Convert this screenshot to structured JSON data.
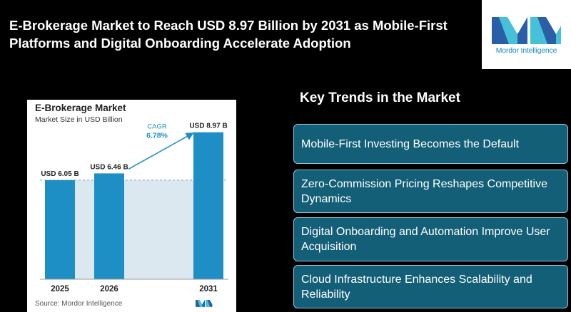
{
  "headline": "E-Brokerage Market to Reach USD 8.97 Billion by 2031 as Mobile-First Platforms and Digital Onboarding Accelerate Adoption",
  "logo": {
    "name": "Mordor Intelligence"
  },
  "colors": {
    "bar": "#1e8fc4",
    "trend_bg": "#145f78",
    "cagr_text": "#1e8fc4",
    "background": "#000000"
  },
  "chart_data": {
    "type": "bar",
    "title": "E-Brokerage Market",
    "subtitle": "Market Size in USD Billion",
    "categories": [
      "2025",
      "2026",
      "2031"
    ],
    "values": [
      6.05,
      6.46,
      8.97
    ],
    "value_labels": [
      "USD 6.05 B",
      "USD 6.46 B",
      "USD 8.97 B"
    ],
    "ylim": [
      0,
      10
    ],
    "cagr_label": "CAGR",
    "cagr_value": "6.78%",
    "source": "Source: Mordor Intelligence"
  },
  "trends": {
    "heading": "Key Trends in the Market",
    "items": [
      "Mobile-First Investing Becomes the Default",
      "Zero-Commission Pricing Reshapes Competitive Dynamics",
      "Digital Onboarding and Automation Improve User Acquisition",
      "Cloud Infrastructure Enhances Scalability and Reliability"
    ]
  }
}
